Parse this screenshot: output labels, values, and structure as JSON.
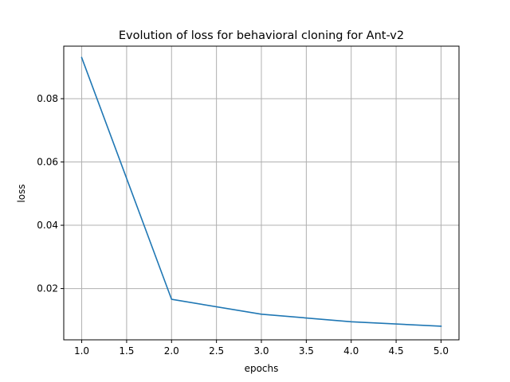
{
  "chart_data": {
    "type": "line",
    "title": "Evolution of loss for behavioral cloning for Ant-v2",
    "xlabel": "epochs",
    "ylabel": "loss",
    "xlim": [
      0.8,
      5.2
    ],
    "ylim": [
      0.0038,
      0.0966
    ],
    "x_ticks": [
      1.0,
      1.5,
      2.0,
      2.5,
      3.0,
      3.5,
      4.0,
      4.5,
      5.0
    ],
    "x_tick_labels": [
      "1.0",
      "1.5",
      "2.0",
      "2.5",
      "3.0",
      "3.5",
      "4.0",
      "4.5",
      "5.0"
    ],
    "y_ticks": [
      0.02,
      0.04,
      0.06,
      0.08
    ],
    "y_tick_labels": [
      "0.02",
      "0.04",
      "0.06",
      "0.08"
    ],
    "grid": true,
    "series": [
      {
        "color": "#1f77b4",
        "x": [
          1,
          2,
          3,
          4,
          5
        ],
        "y": [
          0.093,
          0.0166,
          0.0119,
          0.0095,
          0.0081
        ]
      }
    ]
  }
}
